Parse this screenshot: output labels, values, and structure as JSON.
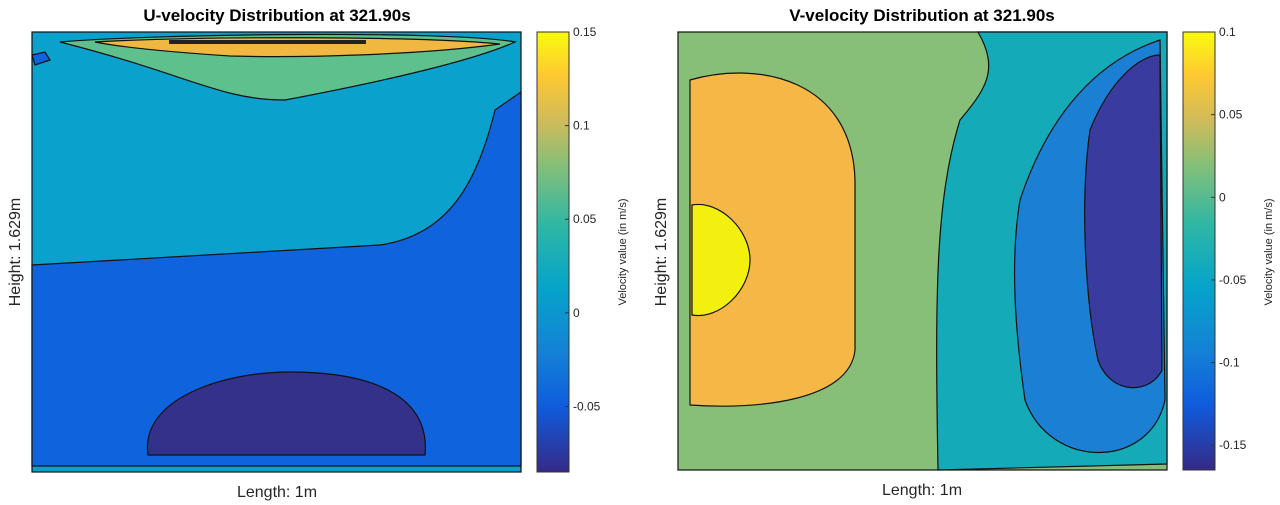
{
  "chart_data": [
    {
      "type": "contour",
      "title": "U-velocity Distribution at 321.90s",
      "xlabel": "Length: 1m",
      "ylabel": "Height: 1.629m",
      "colorbar": {
        "label": "Velocity value (in m/s)",
        "ticks": [
          0.15,
          0.1,
          0.05,
          0,
          -0.05
        ],
        "tick_labels": [
          "0.15",
          "0.1",
          "0.05",
          "0",
          "-0.05"
        ],
        "range": [
          -0.085,
          0.15
        ],
        "colormap": "parula"
      },
      "regions_colors": {
        "background": "#0aa2cc",
        "negative": "#0f63dd",
        "min": "#33318a",
        "positive": "#5ec08c",
        "high": "#f0b840",
        "max": "#f9fb0e"
      }
    },
    {
      "type": "contour",
      "title": "V-velocity Distribution at 321.90s",
      "xlabel": "Length: 1m",
      "ylabel": "Height: 1.629m",
      "colorbar": {
        "label": "Velocity value (in m/s)",
        "ticks": [
          0.1,
          0.05,
          0,
          -0.05,
          -0.1,
          -0.15
        ],
        "tick_labels": [
          "0.1",
          "0.05",
          "0",
          "-0.05",
          "-0.1",
          "-0.15"
        ],
        "range": [
          -0.165,
          0.1
        ],
        "colormap": "parula"
      },
      "regions_colors": {
        "background": "#88bf78",
        "high": "#f5b847",
        "max": "#f3f010",
        "negative": "#14aab8",
        "lower": "#1b80d4",
        "min": "#3a3b9e"
      }
    }
  ]
}
